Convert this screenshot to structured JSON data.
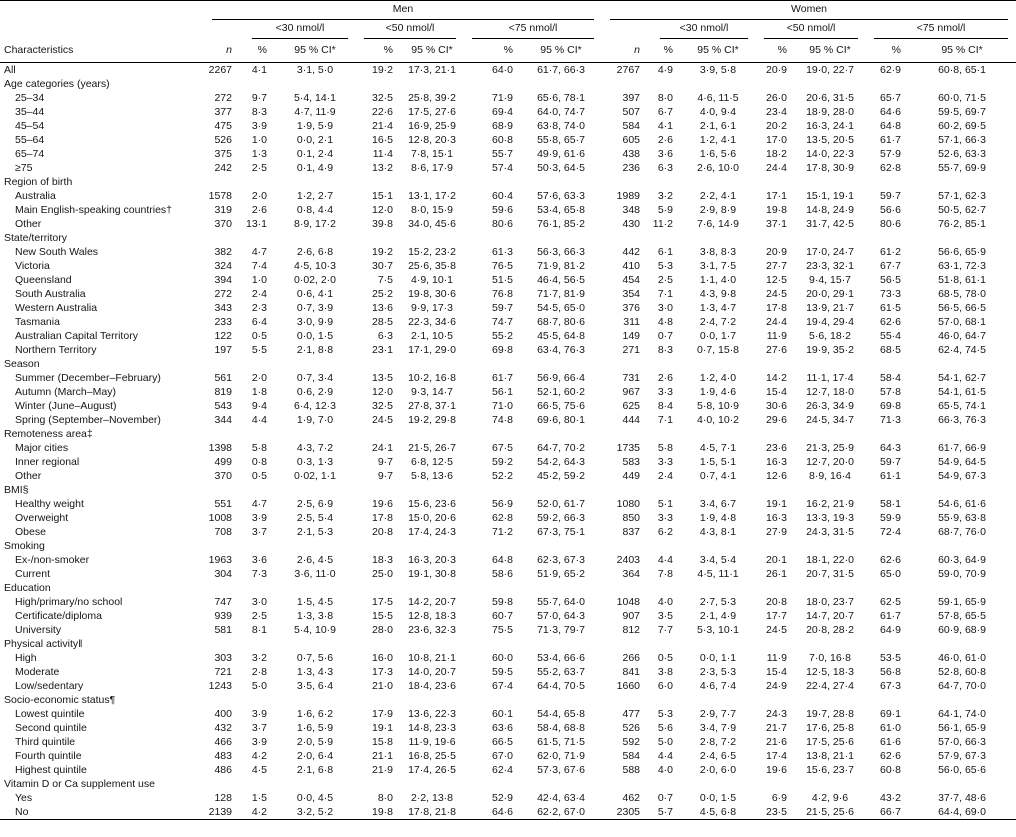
{
  "table": {
    "groups": [
      "Men",
      "Women"
    ],
    "thresholds": [
      "<30 nmol/l",
      "<50 nmol/l",
      "<75 nmol/l"
    ],
    "col_labels": {
      "characteristics": "Characteristics",
      "n": "n",
      "pct": "%",
      "ci": "95 % CI*"
    },
    "rows": [
      {
        "label": "All",
        "cells": [
          "2267",
          "4·1",
          "3·1, 5·0",
          "19·2",
          "17·3, 21·1",
          "64·0",
          "61·7, 66·3",
          "2767",
          "4·9",
          "3·9, 5·8",
          "20·9",
          "19·0, 22·7",
          "62·9",
          "60·8, 65·1"
        ]
      },
      {
        "label": "Age categories (years)",
        "section": true
      },
      {
        "label": "25–34",
        "indent": true,
        "cells": [
          "272",
          "9·7",
          "5·4, 14·1",
          "32·5",
          "25·8, 39·2",
          "71·9",
          "65·6, 78·1",
          "397",
          "8·0",
          "4·6, 11·5",
          "26·0",
          "20·6, 31·5",
          "65·7",
          "60·0, 71·5"
        ]
      },
      {
        "label": "35–44",
        "indent": true,
        "cells": [
          "377",
          "8·3",
          "4·7, 11·9",
          "22·6",
          "17·5, 27·6",
          "69·4",
          "64·0, 74·7",
          "507",
          "6·7",
          "4·0, 9·4",
          "23·4",
          "18·9, 28·0",
          "64·6",
          "59·5, 69·7"
        ]
      },
      {
        "label": "45–54",
        "indent": true,
        "cells": [
          "475",
          "3·9",
          "1·9, 5·9",
          "21·4",
          "16·9, 25·9",
          "68·9",
          "63·8, 74·0",
          "584",
          "4·1",
          "2·1, 6·1",
          "20·2",
          "16·3, 24·1",
          "64·8",
          "60·2, 69·5"
        ]
      },
      {
        "label": "55–64",
        "indent": true,
        "cells": [
          "526",
          "1·0",
          "0·0, 2·1",
          "16·5",
          "12·8, 20·3",
          "60·8",
          "55·8, 65·7",
          "605",
          "2·6",
          "1·2, 4·1",
          "17·0",
          "13·5, 20·5",
          "61·7",
          "57·1, 66·3"
        ]
      },
      {
        "label": "65–74",
        "indent": true,
        "cells": [
          "375",
          "1·3",
          "0·1, 2·4",
          "11·4",
          "7·8, 15·1",
          "55·7",
          "49·9, 61·6",
          "438",
          "3·6",
          "1·6, 5·6",
          "18·2",
          "14·0, 22·3",
          "57·9",
          "52·6, 63·3"
        ]
      },
      {
        "label": "≥75",
        "indent": true,
        "cells": [
          "242",
          "2·5",
          "0·1, 4·9",
          "13·2",
          "8·6, 17·9",
          "57·4",
          "50·3, 64·5",
          "236",
          "6·3",
          "2·6, 10·0",
          "24·4",
          "17·8, 30·9",
          "62·8",
          "55·7, 69·9"
        ]
      },
      {
        "label": "Region of birth",
        "section": true
      },
      {
        "label": "Australia",
        "indent": true,
        "cells": [
          "1578",
          "2·0",
          "1·2, 2·7",
          "15·1",
          "13·1, 17·2",
          "60·4",
          "57·6, 63·3",
          "1989",
          "3·2",
          "2·2, 4·1",
          "17·1",
          "15·1, 19·1",
          "59·7",
          "57·1, 62·3"
        ]
      },
      {
        "label": "Main English-speaking countries†",
        "indent": true,
        "cells": [
          "319",
          "2·6",
          "0·8, 4·4",
          "12·0",
          "8·0, 15·9",
          "59·6",
          "53·4, 65·8",
          "348",
          "5·9",
          "2·9, 8·9",
          "19·8",
          "14·8, 24·9",
          "56·6",
          "50·5, 62·7"
        ]
      },
      {
        "label": "Other",
        "indent": true,
        "cells": [
          "370",
          "13·1",
          "8·9, 17·2",
          "39·8",
          "34·0, 45·6",
          "80·6",
          "76·1, 85·2",
          "430",
          "11·2",
          "7·6, 14·9",
          "37·1",
          "31·7, 42·5",
          "80·6",
          "76·2, 85·1"
        ]
      },
      {
        "label": "State/territory",
        "section": true
      },
      {
        "label": "New South Wales",
        "indent": true,
        "cells": [
          "382",
          "4·7",
          "2·6, 6·8",
          "19·2",
          "15·2, 23·2",
          "61·3",
          "56·3, 66·3",
          "442",
          "6·1",
          "3·8, 8·3",
          "20·9",
          "17·0, 24·7",
          "61·2",
          "56·6, 65·9"
        ]
      },
      {
        "label": "Victoria",
        "indent": true,
        "cells": [
          "324",
          "7·4",
          "4·5, 10·3",
          "30·7",
          "25·6, 35·8",
          "76·5",
          "71·9, 81·2",
          "410",
          "5·3",
          "3·1, 7·5",
          "27·7",
          "23·3, 32·1",
          "67·7",
          "63·1, 72·3"
        ]
      },
      {
        "label": "Queensland",
        "indent": true,
        "cells": [
          "394",
          "1·0",
          "0·02, 2·0",
          "7·5",
          "4·9, 10·1",
          "51·5",
          "46·4, 56·5",
          "454",
          "2·5",
          "1·1, 4·0",
          "12·5",
          "9·4, 15·7",
          "56·5",
          "51·8, 61·1"
        ]
      },
      {
        "label": "South Australia",
        "indent": true,
        "cells": [
          "272",
          "2·4",
          "0·6, 4·1",
          "25·2",
          "19·8, 30·6",
          "76·8",
          "71·7, 81·9",
          "354",
          "7·1",
          "4·3, 9·8",
          "24·5",
          "20·0, 29·1",
          "73·3",
          "68·5, 78·0"
        ]
      },
      {
        "label": "Western Australia",
        "indent": true,
        "cells": [
          "343",
          "2·3",
          "0·7, 3·9",
          "13·6",
          "9·9, 17·3",
          "59·7",
          "54·5, 65·0",
          "376",
          "3·0",
          "1·3, 4·7",
          "17·8",
          "13·9, 21·7",
          "61·5",
          "56·5, 66·5"
        ]
      },
      {
        "label": "Tasmania",
        "indent": true,
        "cells": [
          "233",
          "6·4",
          "3·0, 9·9",
          "28·5",
          "22·3, 34·6",
          "74·7",
          "68·7, 80·6",
          "311",
          "4·8",
          "2·4, 7·2",
          "24·4",
          "19·4, 29·4",
          "62·6",
          "57·0, 68·1"
        ]
      },
      {
        "label": "Australian Capital Territory",
        "indent": true,
        "cells": [
          "122",
          "0·5",
          "0·0, 1·5",
          "6·3",
          "2·1, 10·5",
          "55·2",
          "45·5, 64·8",
          "149",
          "0·7",
          "0·0, 1·7",
          "11·9",
          "5·6, 18·2",
          "55·4",
          "46·0, 64·7"
        ]
      },
      {
        "label": "Northern Territory",
        "indent": true,
        "cells": [
          "197",
          "5·5",
          "2·1, 8·8",
          "23·1",
          "17·1, 29·0",
          "69·8",
          "63·4, 76·3",
          "271",
          "8·3",
          "0·7, 15·8",
          "27·6",
          "19·9, 35·2",
          "68·5",
          "62·4, 74·5"
        ]
      },
      {
        "label": "Season",
        "section": true
      },
      {
        "label": "Summer (December–February)",
        "indent": true,
        "cells": [
          "561",
          "2·0",
          "0·7, 3·4",
          "13·5",
          "10·2, 16·8",
          "61·7",
          "56·9, 66·4",
          "731",
          "2·6",
          "1·2, 4·0",
          "14·2",
          "11·1, 17·4",
          "58·4",
          "54·1, 62·7"
        ]
      },
      {
        "label": "Autumn (March–May)",
        "indent": true,
        "cells": [
          "819",
          "1·8",
          "0·6, 2·9",
          "12·0",
          "9·3, 14·7",
          "56·1",
          "52·1, 60·2",
          "967",
          "3·3",
          "1·9, 4·6",
          "15·4",
          "12·7, 18·0",
          "57·8",
          "54·1, 61·5"
        ]
      },
      {
        "label": "Winter (June–August)",
        "indent": true,
        "cells": [
          "543",
          "9·4",
          "6·4, 12·3",
          "32·5",
          "27·8, 37·1",
          "71·0",
          "66·5, 75·6",
          "625",
          "8·4",
          "5·8, 10·9",
          "30·6",
          "26·3, 34·9",
          "69·8",
          "65·5, 74·1"
        ]
      },
      {
        "label": "Spring (September–November)",
        "indent": true,
        "cells": [
          "344",
          "4·4",
          "1·9, 7·0",
          "24·5",
          "19·2, 29·8",
          "74·8",
          "69·6, 80·1",
          "444",
          "7·1",
          "4·0, 10·2",
          "29·6",
          "24·5, 34·7",
          "71·3",
          "66·3, 76·3"
        ]
      },
      {
        "label": "Remoteness area‡",
        "section": true
      },
      {
        "label": "Major cities",
        "indent": true,
        "cells": [
          "1398",
          "5·8",
          "4·3, 7·2",
          "24·1",
          "21·5, 26·7",
          "67·5",
          "64·7, 70·2",
          "1735",
          "5·8",
          "4·5, 7·1",
          "23·6",
          "21·3, 25·9",
          "64·3",
          "61·7, 66·9"
        ]
      },
      {
        "label": "Inner regional",
        "indent": true,
        "cells": [
          "499",
          "0·8",
          "0·3, 1·3",
          "9·7",
          "6·8, 12·5",
          "59·2",
          "54·2, 64·3",
          "583",
          "3·3",
          "1·5, 5·1",
          "16·3",
          "12·7, 20·0",
          "59·7",
          "54·9, 64·5"
        ]
      },
      {
        "label": "Other",
        "indent": true,
        "cells": [
          "370",
          "0·5",
          "0·02, 1·1",
          "9·7",
          "5·8, 13·6",
          "52·2",
          "45·2, 59·2",
          "449",
          "2·4",
          "0·7, 4·1",
          "12·6",
          "8·9, 16·4",
          "61·1",
          "54·9, 67·3"
        ]
      },
      {
        "label": "BMI§",
        "section": true
      },
      {
        "label": "Healthy weight",
        "indent": true,
        "cells": [
          "551",
          "4·7",
          "2·5, 6·9",
          "19·6",
          "15·6, 23·6",
          "56·9",
          "52·0, 61·7",
          "1080",
          "5·1",
          "3·4, 6·7",
          "19·1",
          "16·2, 21·9",
          "58·1",
          "54·6, 61·6"
        ]
      },
      {
        "label": "Overweight",
        "indent": true,
        "cells": [
          "1008",
          "3·9",
          "2·5, 5·4",
          "17·8",
          "15·0, 20·6",
          "62·8",
          "59·2, 66·3",
          "850",
          "3·3",
          "1·9, 4·8",
          "16·3",
          "13·3, 19·3",
          "59·9",
          "55·9, 63·8"
        ]
      },
      {
        "label": "Obese",
        "indent": true,
        "cells": [
          "708",
          "3·7",
          "2·1, 5·3",
          "20·8",
          "17·4, 24·3",
          "71·2",
          "67·3, 75·1",
          "837",
          "6·2",
          "4·3, 8·1",
          "27·9",
          "24·3, 31·5",
          "72·4",
          "68·7, 76·0"
        ]
      },
      {
        "label": "Smoking",
        "section": true
      },
      {
        "label": "Ex-/non-smoker",
        "indent": true,
        "cells": [
          "1963",
          "3·6",
          "2·6, 4·5",
          "18·3",
          "16·3, 20·3",
          "64·8",
          "62·3, 67·3",
          "2403",
          "4·4",
          "3·4, 5·4",
          "20·1",
          "18·1, 22·0",
          "62·6",
          "60·3, 64·9"
        ]
      },
      {
        "label": "Current",
        "indent": true,
        "cells": [
          "304",
          "7·3",
          "3·6, 11·0",
          "25·0",
          "19·1, 30·8",
          "58·6",
          "51·9, 65·2",
          "364",
          "7·8",
          "4·5, 11·1",
          "26·1",
          "20·7, 31·5",
          "65·0",
          "59·0, 70·9"
        ]
      },
      {
        "label": "Education",
        "section": true
      },
      {
        "label": "High/primary/no school",
        "indent": true,
        "cells": [
          "747",
          "3·0",
          "1·5, 4·5",
          "17·5",
          "14·2, 20·7",
          "59·8",
          "55·7, 64·0",
          "1048",
          "4·0",
          "2·7, 5·3",
          "20·8",
          "18·0, 23·7",
          "62·5",
          "59·1, 65·9"
        ]
      },
      {
        "label": "Certificate/diploma",
        "indent": true,
        "cells": [
          "939",
          "2·5",
          "1·3, 3·8",
          "15·5",
          "12·8, 18·3",
          "60·7",
          "57·0, 64·3",
          "907",
          "3·5",
          "2·1, 4·9",
          "17·7",
          "14·7, 20·7",
          "61·7",
          "57·8, 65·5"
        ]
      },
      {
        "label": "University",
        "indent": true,
        "cells": [
          "581",
          "8·1",
          "5·4, 10·9",
          "28·0",
          "23·6, 32·3",
          "75·5",
          "71·3, 79·7",
          "812",
          "7·7",
          "5·3, 10·1",
          "24·5",
          "20·8, 28·2",
          "64·9",
          "60·9, 68·9"
        ]
      },
      {
        "label": "Physical activity‖",
        "section": true
      },
      {
        "label": "High",
        "indent": true,
        "cells": [
          "303",
          "3·2",
          "0·7, 5·6",
          "16·0",
          "10·8, 21·1",
          "60·0",
          "53·4, 66·6",
          "266",
          "0·5",
          "0·0, 1·1",
          "11·9",
          "7·0, 16·8",
          "53·5",
          "46·0, 61·0"
        ]
      },
      {
        "label": "Moderate",
        "indent": true,
        "cells": [
          "721",
          "2·8",
          "1·3, 4·3",
          "17·3",
          "14·0, 20·7",
          "59·5",
          "55·2, 63·7",
          "841",
          "3·8",
          "2·3, 5·3",
          "15·4",
          "12·5, 18·3",
          "56·8",
          "52·8, 60·8"
        ]
      },
      {
        "label": "Low/sedentary",
        "indent": true,
        "cells": [
          "1243",
          "5·0",
          "3·5, 6·4",
          "21·0",
          "18·4, 23·6",
          "67·4",
          "64·4, 70·5",
          "1660",
          "6·0",
          "4·6, 7·4",
          "24·9",
          "22·4, 27·4",
          "67·3",
          "64·7, 70·0"
        ]
      },
      {
        "label": "Socio-economic status¶",
        "section": true
      },
      {
        "label": "Lowest quintile",
        "indent": true,
        "cells": [
          "400",
          "3·9",
          "1·6, 6·2",
          "17·9",
          "13·6, 22·3",
          "60·1",
          "54·4, 65·8",
          "477",
          "5·3",
          "2·9, 7·7",
          "24·3",
          "19·7, 28·8",
          "69·1",
          "64·1, 74·0"
        ]
      },
      {
        "label": "Second quintile",
        "indent": true,
        "cells": [
          "432",
          "3·7",
          "1·6, 5·9",
          "19·1",
          "14·8, 23·3",
          "63·6",
          "58·4, 68·8",
          "526",
          "5·6",
          "3·4, 7·9",
          "21·7",
          "17·6, 25·8",
          "61·0",
          "56·1, 65·9"
        ]
      },
      {
        "label": "Third quintile",
        "indent": true,
        "cells": [
          "466",
          "3·9",
          "2·0, 5·9",
          "15·8",
          "11·9, 19·6",
          "66·5",
          "61·5, 71·5",
          "592",
          "5·0",
          "2·8, 7·2",
          "21·6",
          "17·5, 25·6",
          "61·6",
          "57·0, 66·3"
        ]
      },
      {
        "label": "Fourth quintile",
        "indent": true,
        "cells": [
          "483",
          "4·2",
          "2·0, 6·4",
          "21·1",
          "16·8, 25·5",
          "67·0",
          "62·0, 71·9",
          "584",
          "4·4",
          "2·4, 6·5",
          "17·4",
          "13·8, 21·1",
          "62·6",
          "57·9, 67·3"
        ]
      },
      {
        "label": "Highest quintile",
        "indent": true,
        "cells": [
          "486",
          "4·5",
          "2·1, 6·8",
          "21·9",
          "17·4, 26·5",
          "62·4",
          "57·3, 67·6",
          "588",
          "4·0",
          "2·0, 6·0",
          "19·6",
          "15·6, 23·7",
          "60·8",
          "56·0, 65·6"
        ]
      },
      {
        "label": "Vitamin D or Ca supplement use",
        "section": true
      },
      {
        "label": "Yes",
        "indent": true,
        "cells": [
          "128",
          "1·5",
          "0·0, 4·5",
          "8·0",
          "2·2, 13·8",
          "52·9",
          "42·4, 63·4",
          "462",
          "0·7",
          "0·0, 1·5",
          "6·9",
          "4·2, 9·6",
          "43·2",
          "37·7, 48·6"
        ]
      },
      {
        "label": "No",
        "indent": true,
        "cells": [
          "2139",
          "4·2",
          "3·2, 5·2",
          "19·8",
          "17·8, 21·8",
          "64·6",
          "62·2, 67·0",
          "2305",
          "5·7",
          "4·5, 6·8",
          "23·5",
          "21·5, 25·6",
          "66·7",
          "64·4, 69·0"
        ]
      }
    ]
  }
}
